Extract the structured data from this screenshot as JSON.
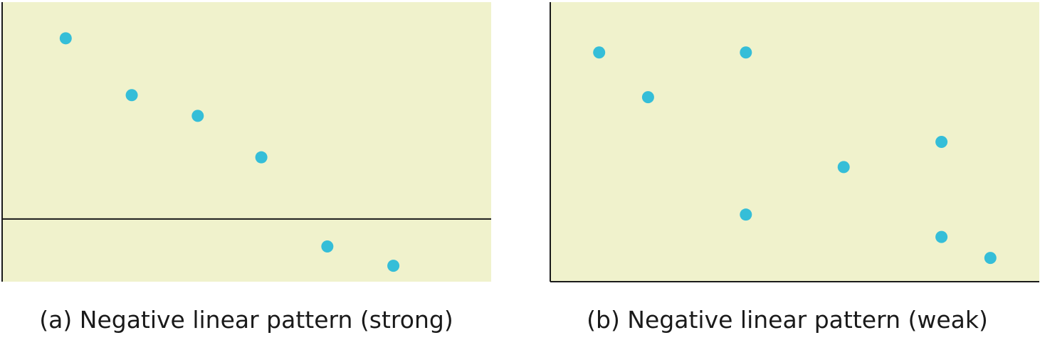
{
  "colors": {
    "plot_background": "#f0f2cc",
    "point": "#35bed8",
    "axis": "#1a1a1a"
  },
  "chart_data": [
    {
      "type": "scatter",
      "caption": "(a) Negative linear pattern (strong)",
      "xlabel": "",
      "ylabel": "",
      "grid": false,
      "xlim": [
        0,
        100
      ],
      "ylim": [
        -13,
        45
      ],
      "x_axis_at_y": 0,
      "points": [
        {
          "x": 13,
          "y": 37.5
        },
        {
          "x": 26.5,
          "y": 25.7
        },
        {
          "x": 40,
          "y": 21.4
        },
        {
          "x": 53,
          "y": 12.8
        },
        {
          "x": 66.5,
          "y": -5.7
        },
        {
          "x": 80,
          "y": -9.7
        }
      ]
    },
    {
      "type": "scatter",
      "caption": "(b) Negative linear pattern (weak)",
      "xlabel": "",
      "ylabel": "",
      "grid": false,
      "xlim": [
        0,
        100
      ],
      "ylim": [
        0,
        100
      ],
      "points": [
        {
          "x": 10,
          "y": 82
        },
        {
          "x": 20,
          "y": 66
        },
        {
          "x": 40,
          "y": 82
        },
        {
          "x": 40,
          "y": 24
        },
        {
          "x": 60,
          "y": 41
        },
        {
          "x": 80,
          "y": 50
        },
        {
          "x": 80,
          "y": 16
        },
        {
          "x": 90,
          "y": 8.5
        }
      ]
    }
  ]
}
